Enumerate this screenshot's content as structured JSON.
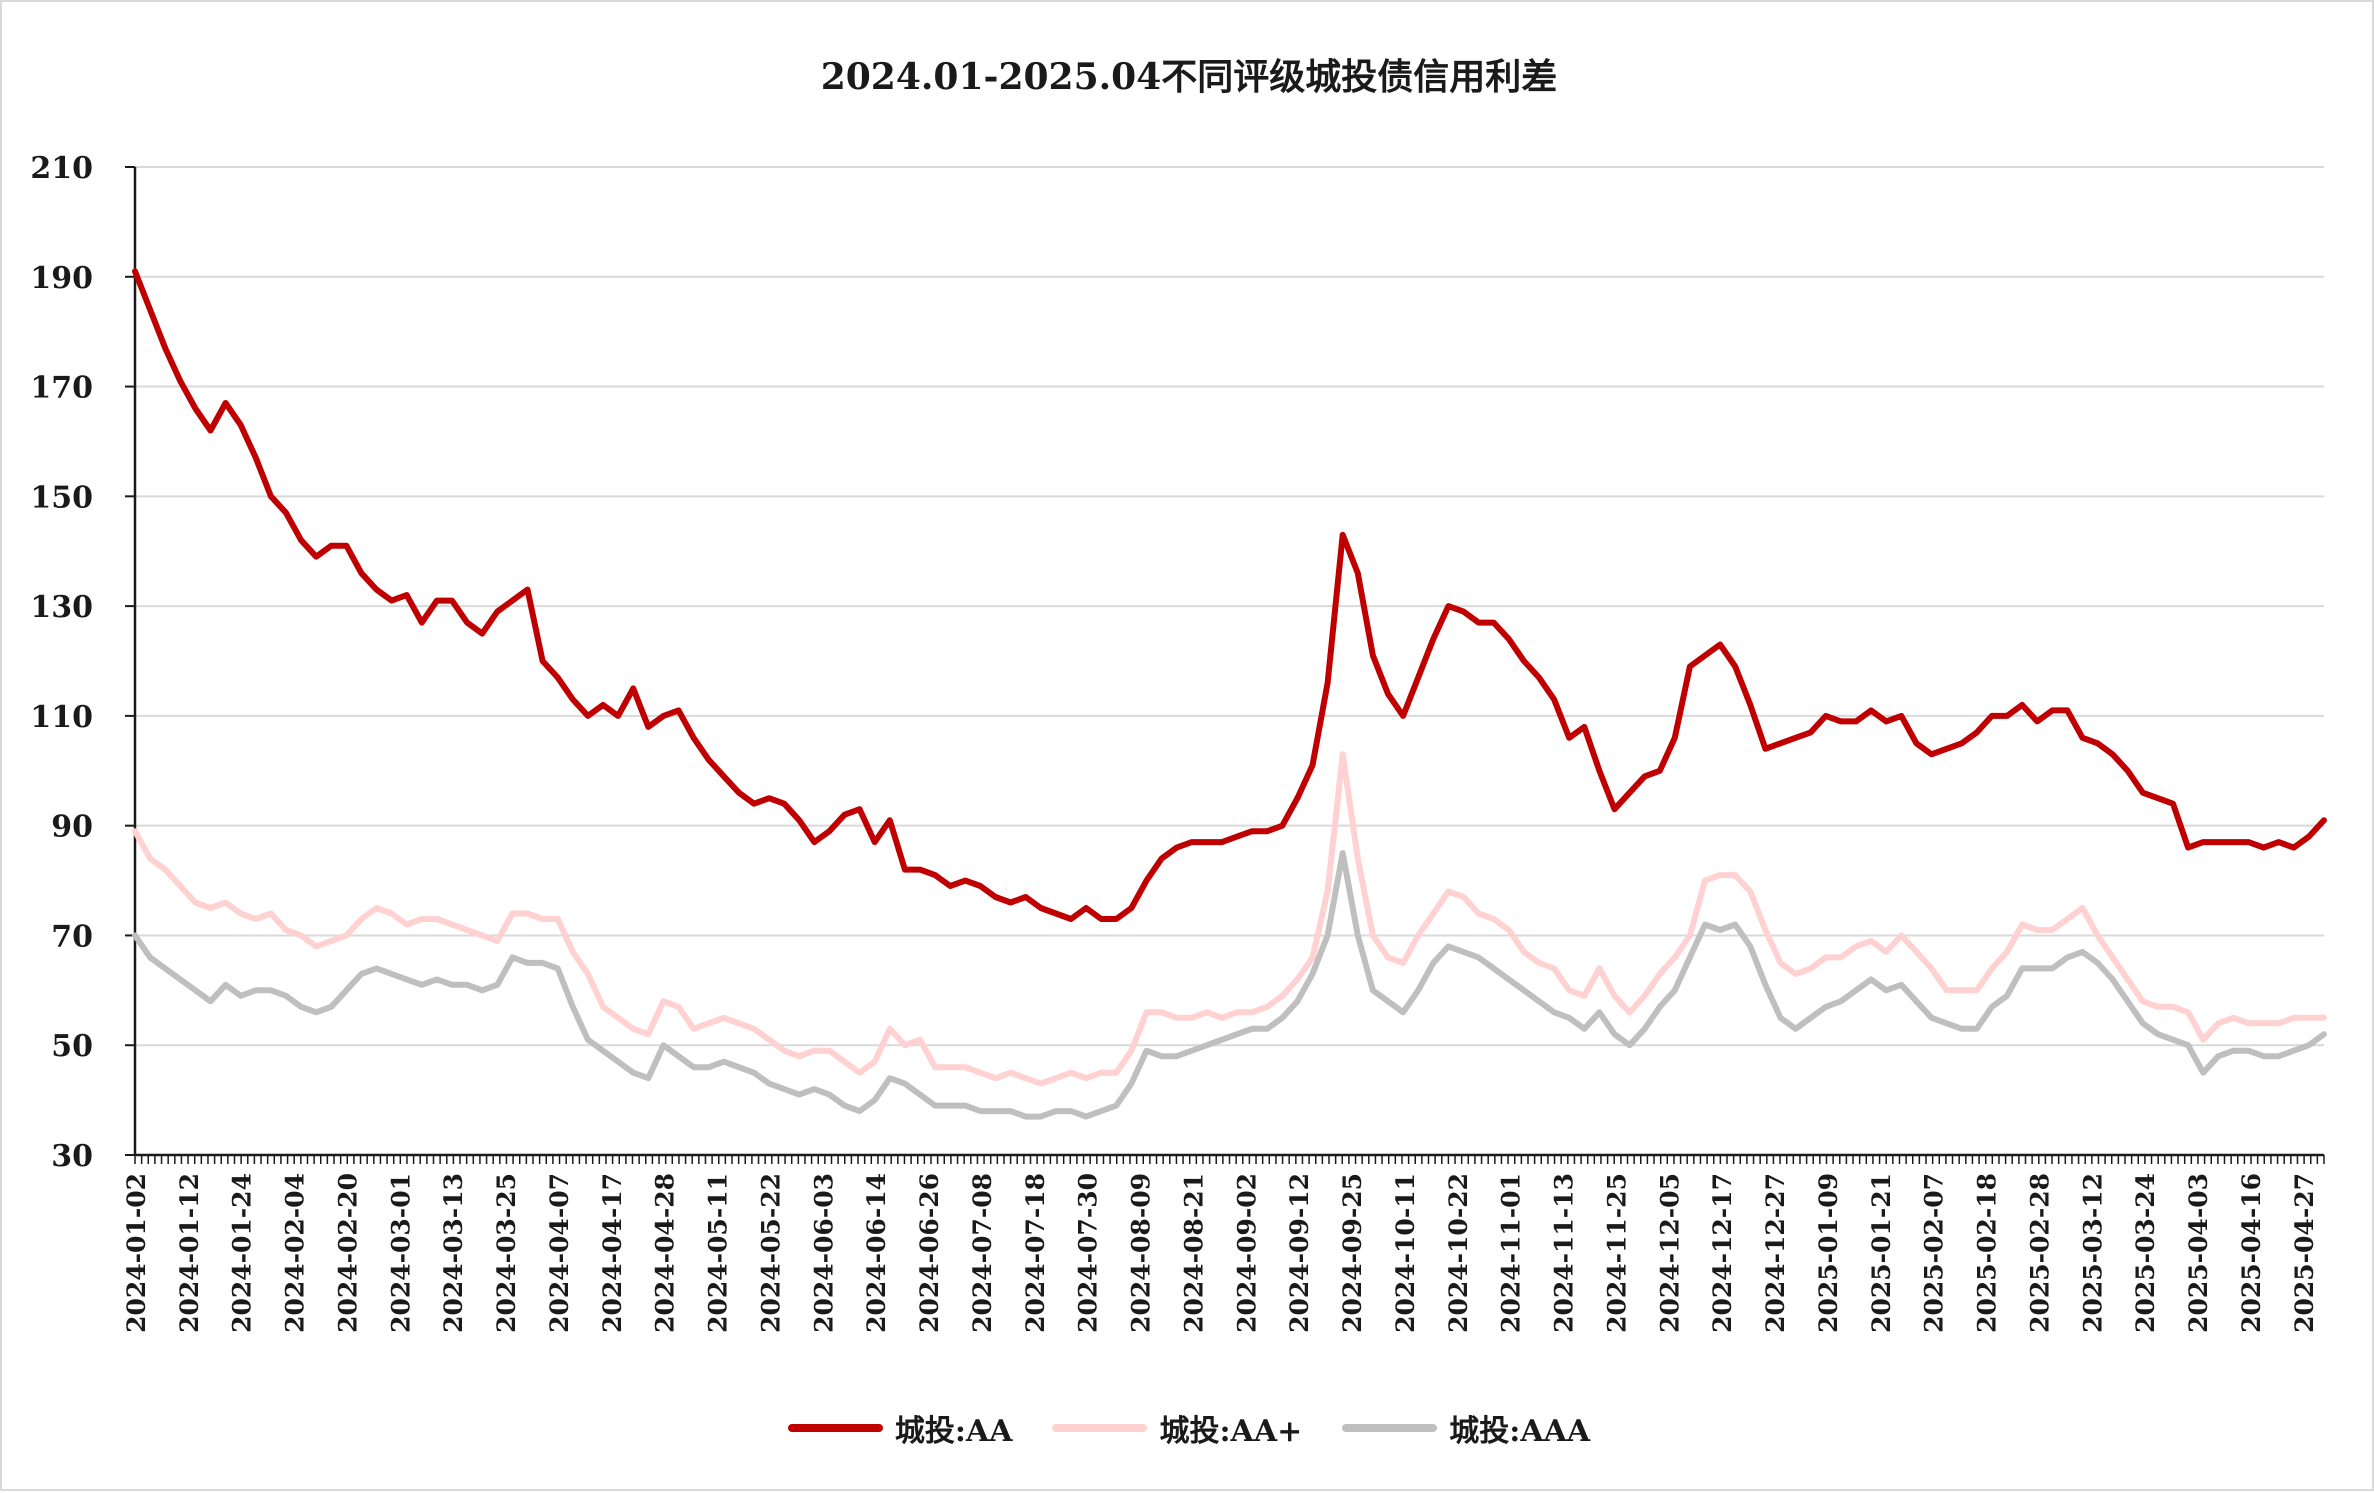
{
  "chart_data": {
    "type": "line",
    "title": "2024.01-2025.04不同评级城投债信用利差",
    "xlabel": "",
    "ylabel": "",
    "ylim": [
      30,
      210
    ],
    "yticks": [
      30,
      50,
      70,
      90,
      110,
      130,
      150,
      170,
      190,
      210
    ],
    "grid": "horizontal",
    "legend_position": "bottom",
    "x_tick_labels": [
      "2024-01-02",
      "2024-01-12",
      "2024-01-24",
      "2024-02-04",
      "2024-02-20",
      "2024-03-01",
      "2024-03-13",
      "2024-03-25",
      "2024-04-07",
      "2024-04-17",
      "2024-04-28",
      "2024-05-11",
      "2024-05-22",
      "2024-06-03",
      "2024-06-14",
      "2024-06-26",
      "2024-07-08",
      "2024-07-18",
      "2024-07-30",
      "2024-08-09",
      "2024-08-21",
      "2024-09-02",
      "2024-09-12",
      "2024-09-25",
      "2024-10-11",
      "2024-10-22",
      "2024-11-01",
      "2024-11-13",
      "2024-11-25",
      "2024-12-05",
      "2024-12-17",
      "2024-12-27",
      "2025-01-09",
      "2025-01-21",
      "2025-02-07",
      "2025-02-18",
      "2025-02-28",
      "2025-03-12",
      "2025-03-24",
      "2025-04-03",
      "2025-04-16",
      "2025-04-27"
    ],
    "series": [
      {
        "name": "城投:AA",
        "color": "#c00000",
        "values": [
          191,
          184,
          177,
          171,
          166,
          162,
          167,
          163,
          157,
          150,
          147,
          142,
          139,
          141,
          141,
          136,
          133,
          131,
          132,
          127,
          131,
          131,
          127,
          125,
          129,
          131,
          133,
          120,
          117,
          113,
          110,
          112,
          110,
          115,
          108,
          110,
          111,
          106,
          102,
          99,
          96,
          94,
          95,
          94,
          91,
          87,
          89,
          92,
          93,
          87,
          91,
          82,
          82,
          81,
          79,
          80,
          79,
          77,
          76,
          77,
          75,
          74,
          73,
          75,
          73,
          73,
          75,
          80,
          84,
          86,
          87,
          87,
          87,
          88,
          89,
          89,
          90,
          95,
          101,
          116,
          143,
          136,
          121,
          114,
          110,
          117,
          124,
          130,
          129,
          127,
          127,
          124,
          120,
          117,
          113,
          106,
          108,
          100,
          93,
          96,
          99,
          100,
          106,
          119,
          121,
          123,
          119,
          112,
          104,
          105,
          106,
          107,
          110,
          109,
          109,
          111,
          109,
          110,
          105,
          103,
          104,
          105,
          107,
          110,
          110,
          112,
          109,
          111,
          111,
          106,
          105,
          103,
          100,
          96,
          95,
          94,
          86,
          87,
          87,
          87,
          87,
          86,
          87,
          86,
          88,
          91
        ]
      },
      {
        "name": "城投:AA+",
        "color": "#ffd1d1",
        "values": [
          89,
          84,
          82,
          79,
          76,
          75,
          76,
          74,
          73,
          74,
          71,
          70,
          68,
          69,
          70,
          73,
          75,
          74,
          72,
          73,
          73,
          72,
          71,
          70,
          69,
          74,
          74,
          73,
          73,
          67,
          63,
          57,
          55,
          53,
          52,
          58,
          57,
          53,
          54,
          55,
          54,
          53,
          51,
          49,
          48,
          49,
          49,
          47,
          45,
          47,
          53,
          50,
          51,
          46,
          46,
          46,
          45,
          44,
          45,
          44,
          43,
          44,
          45,
          44,
          45,
          45,
          49,
          56,
          56,
          55,
          55,
          56,
          55,
          56,
          56,
          57,
          59,
          62,
          66,
          78,
          103,
          84,
          70,
          66,
          65,
          70,
          74,
          78,
          77,
          74,
          73,
          71,
          67,
          65,
          64,
          60,
          59,
          64,
          59,
          56,
          59,
          63,
          66,
          70,
          80,
          81,
          81,
          78,
          71,
          65,
          63,
          64,
          66,
          66,
          68,
          69,
          67,
          70,
          67,
          64,
          60,
          60,
          60,
          64,
          67,
          72,
          71,
          71,
          73,
          75,
          70,
          66,
          62,
          58,
          57,
          57,
          56,
          51,
          54,
          55,
          54,
          54,
          54,
          55,
          55,
          55
        ]
      },
      {
        "name": "城投:AAA",
        "color": "#bfbfbf",
        "values": [
          70,
          66,
          64,
          62,
          60,
          58,
          61,
          59,
          60,
          60,
          59,
          57,
          56,
          57,
          60,
          63,
          64,
          63,
          62,
          61,
          62,
          61,
          61,
          60,
          61,
          66,
          65,
          65,
          64,
          57,
          51,
          49,
          47,
          45,
          44,
          50,
          48,
          46,
          46,
          47,
          46,
          45,
          43,
          42,
          41,
          42,
          41,
          39,
          38,
          40,
          44,
          43,
          41,
          39,
          39,
          39,
          38,
          38,
          38,
          37,
          37,
          38,
          38,
          37,
          38,
          39,
          43,
          49,
          48,
          48,
          49,
          50,
          51,
          52,
          53,
          53,
          55,
          58,
          63,
          70,
          85,
          70,
          60,
          58,
          56,
          60,
          65,
          68,
          67,
          66,
          64,
          62,
          60,
          58,
          56,
          55,
          53,
          56,
          52,
          50,
          53,
          57,
          60,
          66,
          72,
          71,
          72,
          68,
          61,
          55,
          53,
          55,
          57,
          58,
          60,
          62,
          60,
          61,
          58,
          55,
          54,
          53,
          53,
          57,
          59,
          64,
          64,
          64,
          66,
          67,
          65,
          62,
          58,
          54,
          52,
          51,
          50,
          45,
          48,
          49,
          49,
          48,
          48,
          49,
          50,
          52
        ]
      }
    ]
  }
}
